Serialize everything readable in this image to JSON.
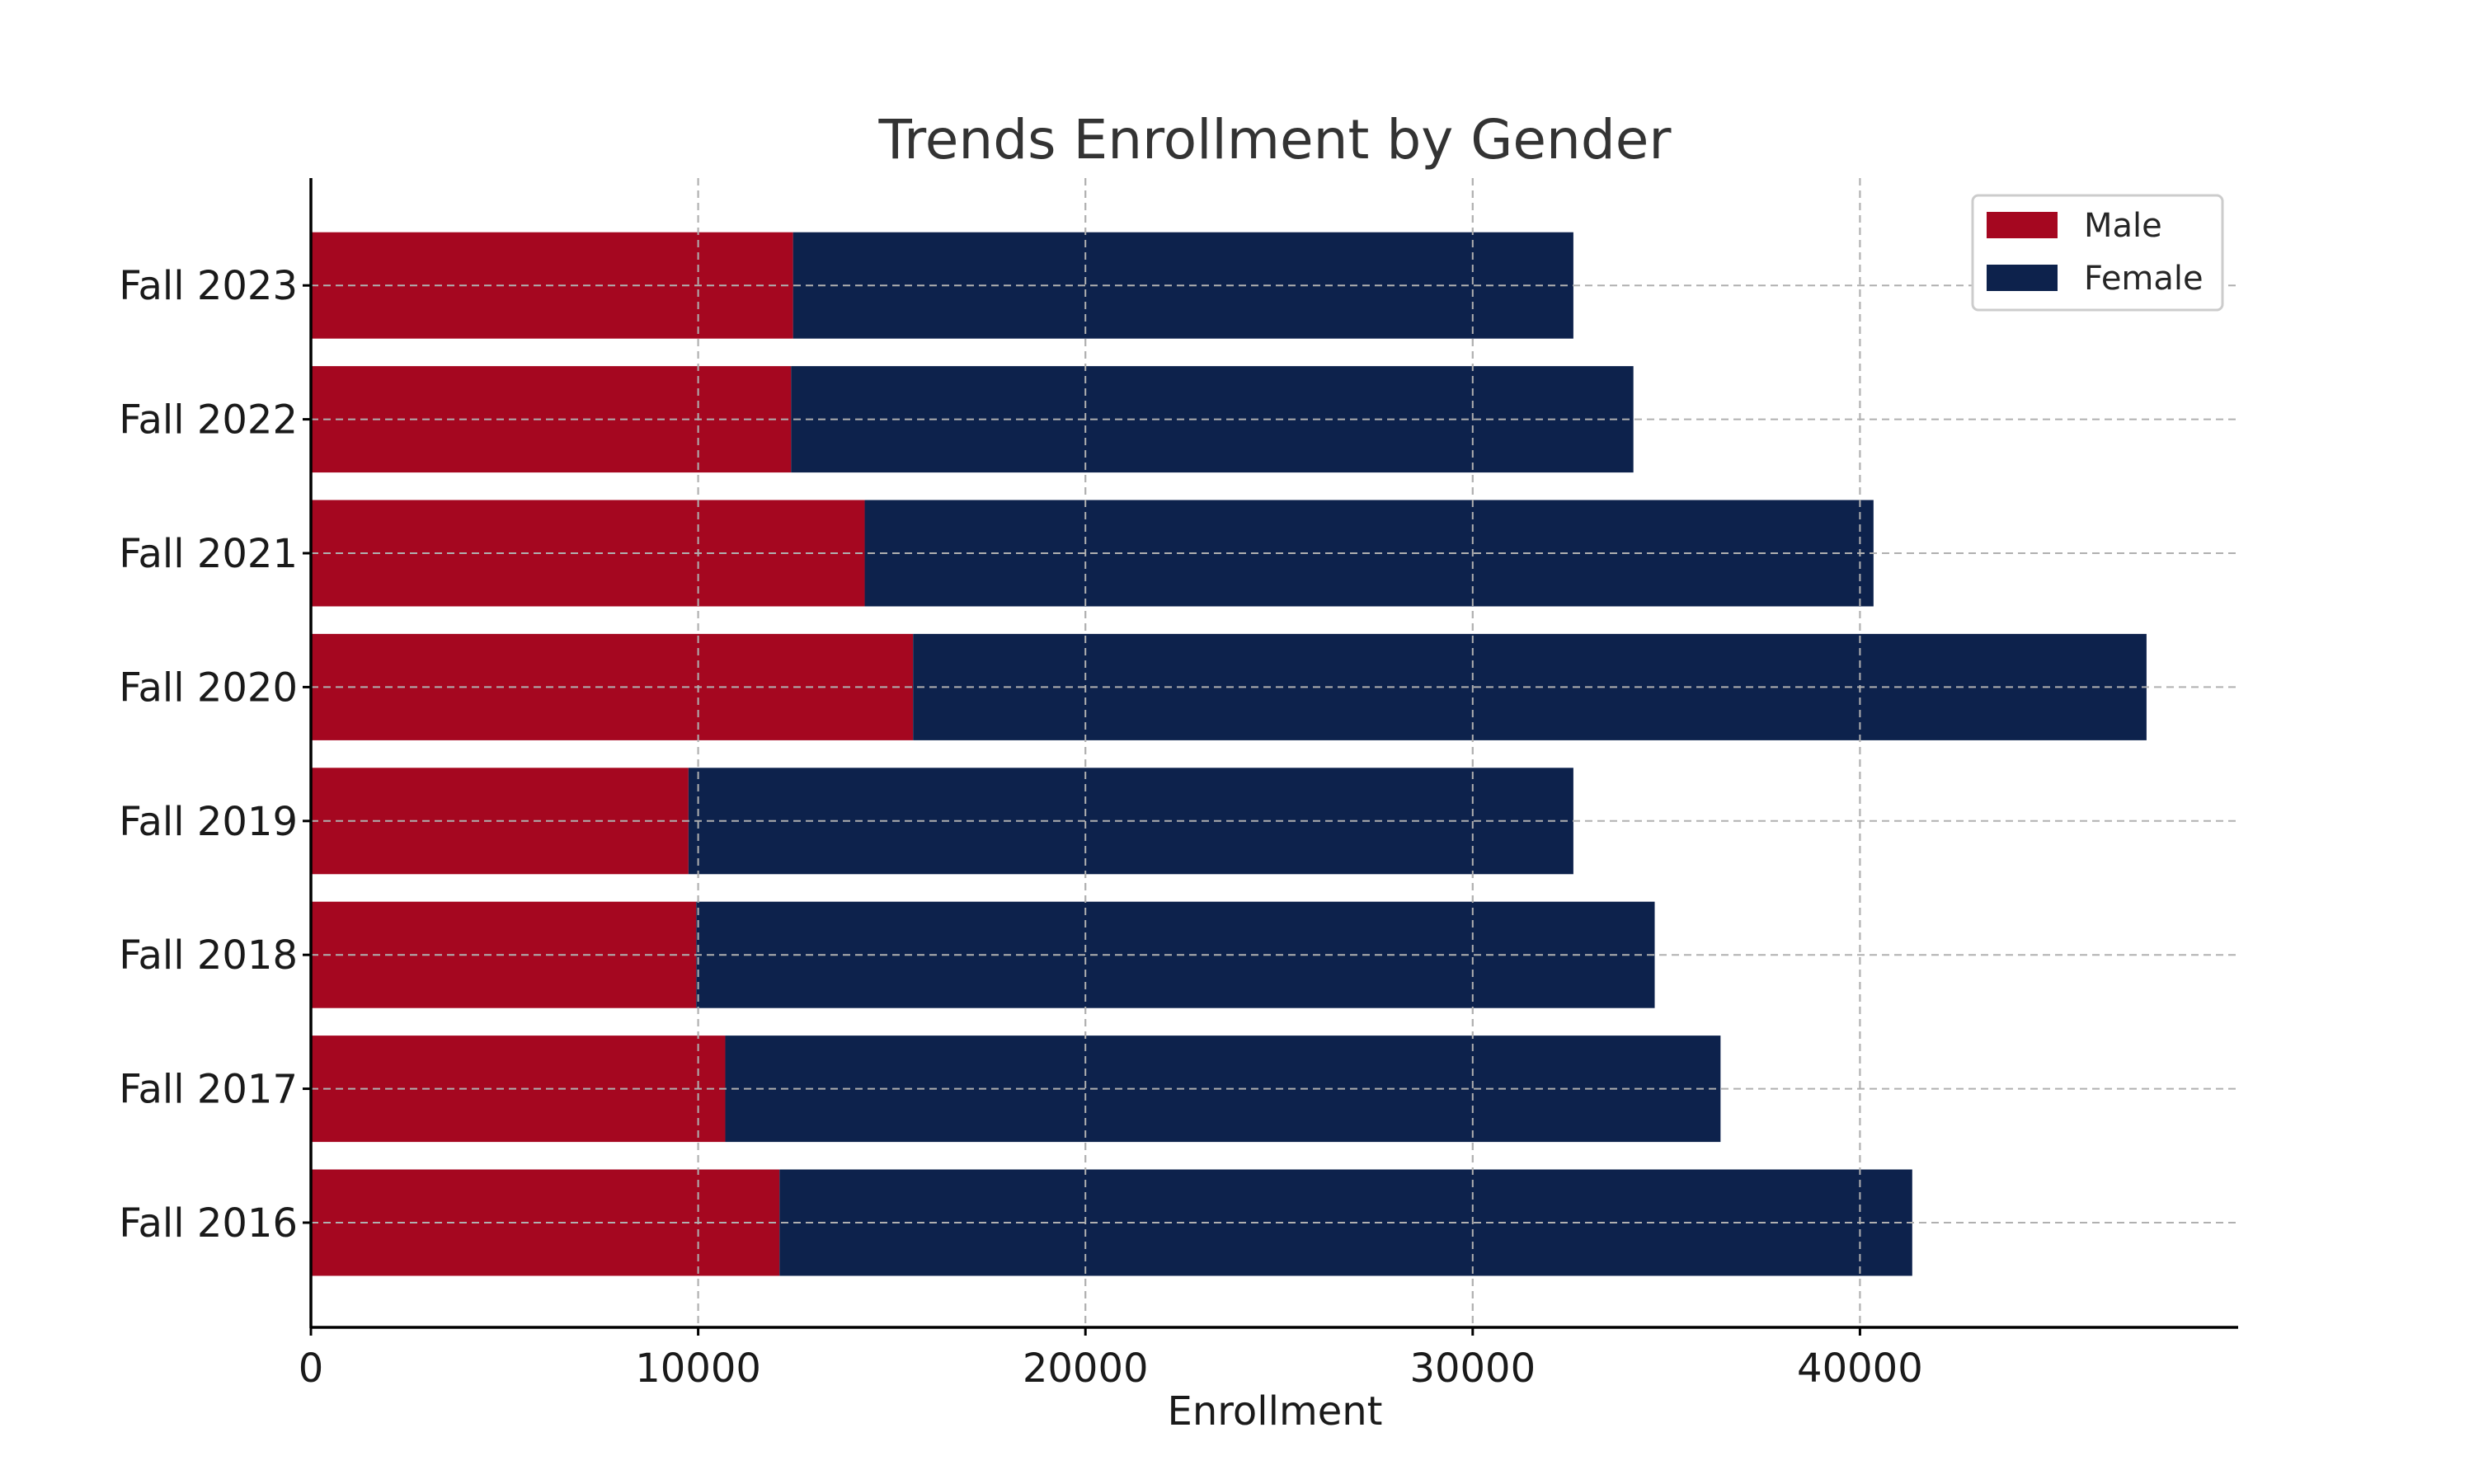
{
  "chart_data": {
    "type": "bar",
    "orientation": "horizontal",
    "stacked": true,
    "title": "Trends Enrollment by Gender",
    "xlabel": "Enrollment",
    "ylabel": "",
    "categories": [
      "Fall 2016",
      "Fall 2017",
      "Fall 2018",
      "Fall 2019",
      "Fall 2020",
      "Fall 2021",
      "Fall 2022",
      "Fall 2023"
    ],
    "series": [
      {
        "name": "Male",
        "color": "#a50720",
        "values": [
          12100,
          10700,
          9950,
          9750,
          15550,
          14300,
          12400,
          12450
        ]
      },
      {
        "name": "Female",
        "color": "#0d224c",
        "values": [
          29250,
          25700,
          24750,
          22850,
          31850,
          26050,
          21750,
          20150
        ]
      }
    ],
    "xlim": [
      0,
      49800
    ],
    "xticks": [
      "0",
      "10000",
      "20000",
      "30000",
      "40000"
    ],
    "grid": true,
    "legend_position": "top-right"
  }
}
